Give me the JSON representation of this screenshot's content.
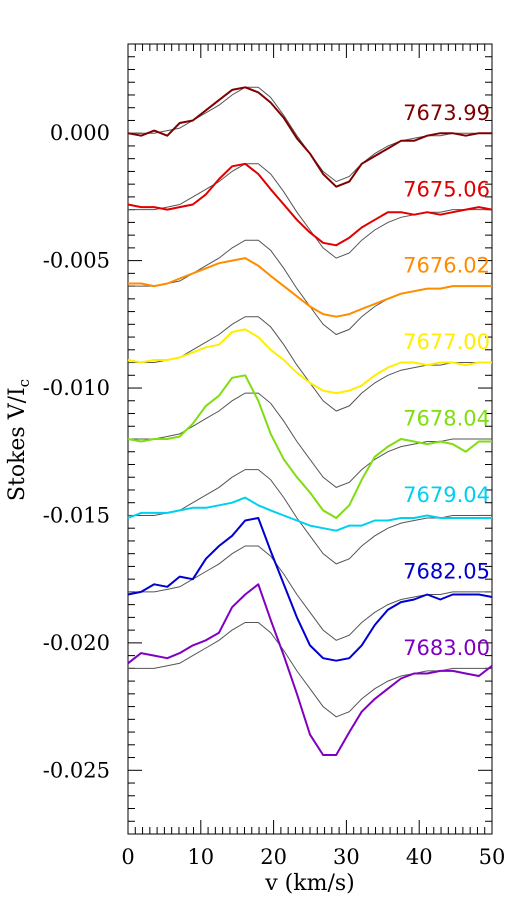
{
  "chart_data": {
    "type": "line",
    "title": "",
    "xlabel": "v (km/s)",
    "ylabel": "Stokes V/I",
    "ylabel_subscript": "c",
    "xlim": [
      0,
      50
    ],
    "ylim": [
      -0.0275,
      0.0035
    ],
    "xticks": [
      0,
      10,
      20,
      30,
      40,
      50
    ],
    "xtick_labels": [
      "0",
      "10",
      "20",
      "30",
      "40",
      "50"
    ],
    "yticks": [
      0.0,
      -0.005,
      -0.01,
      -0.015,
      -0.02,
      -0.025
    ],
    "ytick_labels": [
      "0.000",
      "-0.005",
      "-0.010",
      "-0.015",
      "-0.020",
      "-0.025"
    ],
    "grid": false,
    "x": [
      0,
      1.8,
      3.6,
      5.4,
      7.1,
      8.9,
      10.7,
      12.5,
      14.3,
      16.1,
      17.9,
      19.6,
      21.4,
      23.2,
      25.0,
      26.8,
      28.6,
      30.4,
      32.1,
      33.9,
      35.7,
      37.5,
      39.3,
      41.1,
      42.9,
      44.6,
      46.4,
      48.2,
      50.0
    ],
    "model_profile": [
      0.0,
      0.0,
      0.0,
      0.0001,
      0.0002,
      0.0005,
      0.0008,
      0.0011,
      0.0015,
      0.0018,
      0.0018,
      0.0014,
      0.0007,
      -0.0001,
      -0.0008,
      -0.0015,
      -0.0019,
      -0.0017,
      -0.0012,
      -0.0008,
      -0.0005,
      -0.0003,
      -0.0002,
      -0.0001,
      -0.0001,
      0.0,
      0.0,
      0.0,
      0.0
    ],
    "series": [
      {
        "name": "7673.99",
        "color": "#800000",
        "offset": 0.0,
        "values": [
          0.0,
          -0.0001,
          0.0001,
          -0.0001,
          0.0004,
          0.0005,
          0.0009,
          0.0013,
          0.0017,
          0.0018,
          0.0016,
          0.0012,
          0.0006,
          -0.0002,
          -0.0008,
          -0.0016,
          -0.0021,
          -0.0019,
          -0.0012,
          -0.0009,
          -0.0006,
          -0.0003,
          -0.0003,
          -0.0001,
          0.0,
          0.0,
          -0.0001,
          0.0,
          0.0
        ]
      },
      {
        "name": "7675.06",
        "color": "#e00000",
        "offset": -0.003,
        "values": [
          -0.0028,
          -0.0029,
          -0.0029,
          -0.003,
          -0.0029,
          -0.0028,
          -0.0024,
          -0.0018,
          -0.0013,
          -0.0012,
          -0.0016,
          -0.0022,
          -0.0028,
          -0.0034,
          -0.0039,
          -0.0043,
          -0.0044,
          -0.0041,
          -0.0037,
          -0.0034,
          -0.0031,
          -0.0031,
          -0.0032,
          -0.0031,
          -0.0032,
          -0.0031,
          -0.003,
          -0.0029,
          -0.003
        ]
      },
      {
        "name": "7676.02",
        "color": "#ff8c00",
        "offset": -0.006,
        "values": [
          -0.0059,
          -0.0059,
          -0.006,
          -0.0059,
          -0.0057,
          -0.0055,
          -0.0053,
          -0.0051,
          -0.005,
          -0.0049,
          -0.0052,
          -0.0056,
          -0.006,
          -0.0064,
          -0.0068,
          -0.0071,
          -0.0072,
          -0.0071,
          -0.0069,
          -0.0067,
          -0.0065,
          -0.0063,
          -0.0062,
          -0.0061,
          -0.0061,
          -0.006,
          -0.006,
          -0.006,
          -0.006
        ]
      },
      {
        "name": "7677.00",
        "color": "#ffee00",
        "offset": -0.009,
        "values": [
          -0.0089,
          -0.009,
          -0.0089,
          -0.0089,
          -0.0088,
          -0.0086,
          -0.0084,
          -0.0083,
          -0.0078,
          -0.0077,
          -0.008,
          -0.0085,
          -0.0089,
          -0.0094,
          -0.0098,
          -0.0101,
          -0.0102,
          -0.0101,
          -0.0099,
          -0.0095,
          -0.0092,
          -0.009,
          -0.009,
          -0.0091,
          -0.009,
          -0.009,
          -0.0091,
          -0.009,
          -0.009
        ]
      },
      {
        "name": "7678.04",
        "color": "#7fdd10",
        "offset": -0.012,
        "values": [
          -0.012,
          -0.0121,
          -0.012,
          -0.012,
          -0.0119,
          -0.0114,
          -0.0107,
          -0.0103,
          -0.0096,
          -0.0095,
          -0.0105,
          -0.0118,
          -0.0128,
          -0.0135,
          -0.0141,
          -0.0148,
          -0.0151,
          -0.0146,
          -0.0136,
          -0.0127,
          -0.0123,
          -0.012,
          -0.0121,
          -0.0122,
          -0.0121,
          -0.0122,
          -0.0125,
          -0.0121,
          -0.0121
        ]
      },
      {
        "name": "7679.04",
        "color": "#00d0f0",
        "offset": -0.015,
        "values": [
          -0.0151,
          -0.0149,
          -0.0149,
          -0.0149,
          -0.0148,
          -0.0147,
          -0.0147,
          -0.0146,
          -0.0145,
          -0.0143,
          -0.0146,
          -0.0148,
          -0.015,
          -0.0152,
          -0.0154,
          -0.0155,
          -0.0156,
          -0.0154,
          -0.0154,
          -0.0152,
          -0.0152,
          -0.0151,
          -0.0151,
          -0.015,
          -0.0151,
          -0.0151,
          -0.0151,
          -0.0151,
          -0.0151
        ]
      },
      {
        "name": "7682.05",
        "color": "#0000d0",
        "offset": -0.018,
        "values": [
          -0.0181,
          -0.018,
          -0.0177,
          -0.0178,
          -0.0174,
          -0.0175,
          -0.0167,
          -0.0162,
          -0.0158,
          -0.0152,
          -0.0151,
          -0.0164,
          -0.0177,
          -0.019,
          -0.0201,
          -0.0206,
          -0.0207,
          -0.0206,
          -0.0201,
          -0.0193,
          -0.0187,
          -0.0184,
          -0.0183,
          -0.0181,
          -0.0183,
          -0.0181,
          -0.0181,
          -0.0181,
          -0.0182
        ]
      },
      {
        "name": "7683.00",
        "color": "#8000c0",
        "offset": -0.021,
        "values": [
          -0.0208,
          -0.0204,
          -0.0205,
          -0.0206,
          -0.0204,
          -0.0201,
          -0.0199,
          -0.0196,
          -0.0186,
          -0.0181,
          -0.0177,
          -0.0191,
          -0.0205,
          -0.022,
          -0.0236,
          -0.0244,
          -0.0244,
          -0.0235,
          -0.0227,
          -0.0222,
          -0.0218,
          -0.0214,
          -0.0212,
          -0.0212,
          -0.0211,
          -0.0211,
          -0.0212,
          -0.0213,
          -0.0209
        ]
      }
    ],
    "model_color": "#555555"
  }
}
